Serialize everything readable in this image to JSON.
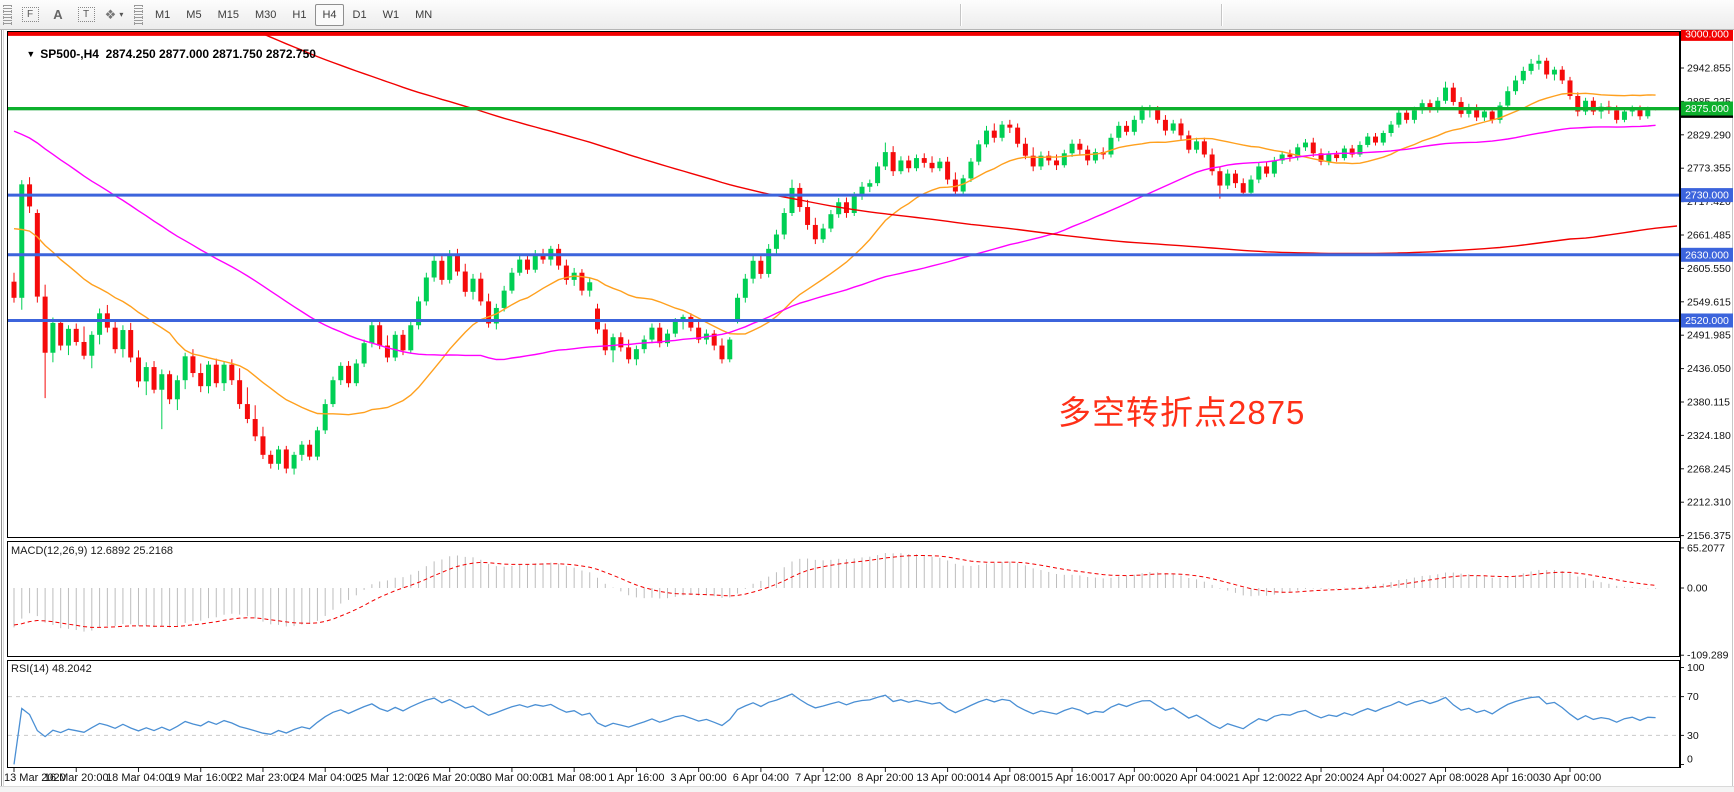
{
  "toolbar": {
    "drawing_tools": [
      {
        "id": "fibo-grid-tool",
        "glyph": "F"
      },
      {
        "id": "label-tool",
        "glyph": "A"
      },
      {
        "id": "text-tool",
        "glyph": "T"
      },
      {
        "id": "shapes-tool",
        "glyph": "❖"
      }
    ],
    "dropdown_caret": "▾",
    "timeframes": [
      "M1",
      "M5",
      "M15",
      "M30",
      "H1",
      "H4",
      "D1",
      "W1",
      "MN"
    ],
    "active_timeframe": "H4"
  },
  "chart": {
    "dropdown_glyph": "▼",
    "symbol": "SP500-,H4",
    "open": "2874.250",
    "high": "2877.000",
    "low": "2871.750",
    "close": "2872.750",
    "macd_label": "MACD(12,26,9) 12.6892 25.2168",
    "rsi_label": "RSI(14) 48.2042",
    "annotation_text": "多空转折点2875"
  },
  "chart_data": {
    "type": "candlestick",
    "symbol": "SP500-",
    "timeframe": "H4",
    "title": "SP500-,H4 2874.250 2877.000 2871.750 2872.750",
    "price_axis_ticks": [
      2942.855,
      2885.225,
      2829.29,
      2773.355,
      2717.42,
      2661.485,
      2605.55,
      2549.615,
      2491.985,
      2436.05,
      2380.115,
      2324.18,
      2268.245,
      2212.31,
      2156.375
    ],
    "visible_price_range": [
      2146,
      3011
    ],
    "horizontal_lines": [
      {
        "price": 3000.0,
        "color": "#f20000",
        "width": 4,
        "badge": "3000.000"
      },
      {
        "price": 2875.0,
        "color": "#0db02d",
        "width": 3,
        "badge": "2875.000"
      },
      {
        "price": 2730.0,
        "color": "#3c64dc",
        "width": 3,
        "badge": "2730.000"
      },
      {
        "price": 2630.0,
        "color": "#3c64dc",
        "width": 3,
        "badge": "2630.000"
      },
      {
        "price": 2520.0,
        "color": "#3c64dc",
        "width": 3,
        "badge": "2520.000"
      }
    ],
    "bid_line": {
      "price": 2872.75,
      "color": "#2fae4e",
      "badge": "2872.750",
      "badge_bg": "#000000"
    },
    "bull_color": "#00cf54",
    "bear_color": "#f50b0b",
    "moving_averages": [
      {
        "name": "sma-20",
        "period": 20,
        "color": "#ffa01e"
      },
      {
        "name": "sma-60",
        "period": 60,
        "color": "#ff00ff"
      },
      {
        "name": "sma-200",
        "period": 200,
        "color": "#f20000"
      }
    ],
    "ma_seed_closes_anchors": [
      [
        -200,
        3300
      ],
      [
        -175,
        3380
      ],
      [
        -150,
        3390
      ],
      [
        -125,
        3320
      ],
      [
        -100,
        3200
      ],
      [
        -85,
        3080
      ],
      [
        -70,
        3130
      ],
      [
        -60,
        3090
      ],
      [
        -50,
        3010
      ],
      [
        -40,
        2920
      ],
      [
        -30,
        2820
      ],
      [
        -22,
        2800
      ],
      [
        -15,
        2740
      ],
      [
        -8,
        2650
      ],
      [
        -1,
        2590
      ]
    ],
    "candles": [
      [
        2585,
        2600,
        2550,
        2558
      ],
      [
        2558,
        2755,
        2538,
        2748
      ],
      [
        2748,
        2760,
        2700,
        2711
      ],
      [
        2700,
        2706,
        2550,
        2560
      ],
      [
        2560,
        2580,
        2390,
        2466
      ],
      [
        2466,
        2525,
        2450,
        2516
      ],
      [
        2516,
        2522,
        2470,
        2478
      ],
      [
        2478,
        2512,
        2462,
        2506
      ],
      [
        2506,
        2515,
        2478,
        2484
      ],
      [
        2484,
        2510,
        2455,
        2461
      ],
      [
        2461,
        2502,
        2440,
        2496
      ],
      [
        2496,
        2540,
        2480,
        2532
      ],
      [
        2532,
        2546,
        2500,
        2508
      ],
      [
        2508,
        2520,
        2465,
        2472
      ],
      [
        2472,
        2512,
        2458,
        2504
      ],
      [
        2504,
        2516,
        2450,
        2458
      ],
      [
        2458,
        2470,
        2408,
        2418
      ],
      [
        2418,
        2450,
        2395,
        2442
      ],
      [
        2442,
        2452,
        2398,
        2404
      ],
      [
        2404,
        2438,
        2338,
        2430
      ],
      [
        2430,
        2436,
        2380,
        2388
      ],
      [
        2388,
        2428,
        2370,
        2420
      ],
      [
        2420,
        2466,
        2405,
        2460
      ],
      [
        2460,
        2472,
        2425,
        2432
      ],
      [
        2432,
        2448,
        2400,
        2410
      ],
      [
        2410,
        2452,
        2398,
        2446
      ],
      [
        2446,
        2456,
        2408,
        2415
      ],
      [
        2415,
        2452,
        2402,
        2446
      ],
      [
        2446,
        2455,
        2412,
        2420
      ],
      [
        2420,
        2440,
        2372,
        2380
      ],
      [
        2380,
        2408,
        2348,
        2355
      ],
      [
        2355,
        2378,
        2318,
        2326
      ],
      [
        2326,
        2342,
        2288,
        2295
      ],
      [
        2295,
        2302,
        2272,
        2280
      ],
      [
        2280,
        2310,
        2270,
        2304
      ],
      [
        2304,
        2310,
        2264,
        2272
      ],
      [
        2272,
        2300,
        2262,
        2295
      ],
      [
        2295,
        2318,
        2285,
        2312
      ],
      [
        2312,
        2320,
        2286,
        2292
      ],
      [
        2292,
        2342,
        2286,
        2336
      ],
      [
        2336,
        2388,
        2330,
        2380
      ],
      [
        2380,
        2426,
        2375,
        2420
      ],
      [
        2420,
        2450,
        2412,
        2444
      ],
      [
        2444,
        2452,
        2408,
        2415
      ],
      [
        2415,
        2455,
        2410,
        2448
      ],
      [
        2448,
        2488,
        2442,
        2482
      ],
      [
        2482,
        2522,
        2475,
        2512
      ],
      [
        2512,
        2520,
        2472,
        2478
      ],
      [
        2478,
        2495,
        2450,
        2458
      ],
      [
        2458,
        2502,
        2452,
        2496
      ],
      [
        2496,
        2504,
        2462,
        2470
      ],
      [
        2470,
        2518,
        2465,
        2512
      ],
      [
        2512,
        2560,
        2505,
        2552
      ],
      [
        2552,
        2600,
        2545,
        2592
      ],
      [
        2592,
        2628,
        2585,
        2620
      ],
      [
        2620,
        2630,
        2580,
        2588
      ],
      [
        2588,
        2638,
        2582,
        2630
      ],
      [
        2630,
        2640,
        2595,
        2602
      ],
      [
        2602,
        2615,
        2560,
        2568
      ],
      [
        2568,
        2598,
        2555,
        2590
      ],
      [
        2590,
        2600,
        2545,
        2552
      ],
      [
        2552,
        2565,
        2508,
        2515
      ],
      [
        2515,
        2548,
        2505,
        2541
      ],
      [
        2541,
        2578,
        2535,
        2570
      ],
      [
        2570,
        2608,
        2565,
        2600
      ],
      [
        2600,
        2628,
        2595,
        2622
      ],
      [
        2622,
        2630,
        2598,
        2605
      ],
      [
        2605,
        2638,
        2600,
        2632
      ],
      [
        2632,
        2640,
        2615,
        2622
      ],
      [
        2622,
        2645,
        2612,
        2640
      ],
      [
        2640,
        2648,
        2605,
        2612
      ],
      [
        2612,
        2622,
        2580,
        2588
      ],
      [
        2588,
        2608,
        2578,
        2600
      ],
      [
        2600,
        2606,
        2562,
        2570
      ],
      [
        2570,
        2592,
        2560,
        2584
      ],
      [
        2540,
        2548,
        2498,
        2505
      ],
      [
        2505,
        2515,
        2462,
        2470
      ],
      [
        2470,
        2498,
        2450,
        2492
      ],
      [
        2492,
        2500,
        2468,
        2475
      ],
      [
        2475,
        2488,
        2448,
        2455
      ],
      [
        2455,
        2478,
        2445,
        2472
      ],
      [
        2472,
        2495,
        2465,
        2488
      ],
      [
        2488,
        2515,
        2482,
        2508
      ],
      [
        2508,
        2516,
        2475,
        2482
      ],
      [
        2482,
        2505,
        2476,
        2498
      ],
      [
        2498,
        2524,
        2492,
        2518
      ],
      [
        2518,
        2530,
        2505,
        2526
      ],
      [
        2526,
        2532,
        2502,
        2508
      ],
      [
        2508,
        2518,
        2482,
        2488
      ],
      [
        2488,
        2505,
        2480,
        2498
      ],
      [
        2498,
        2504,
        2470,
        2478
      ],
      [
        2478,
        2490,
        2448,
        2455
      ],
      [
        2455,
        2492,
        2450,
        2488
      ],
      [
        2522,
        2565,
        2515,
        2558
      ],
      [
        2558,
        2598,
        2550,
        2590
      ],
      [
        2590,
        2628,
        2582,
        2620
      ],
      [
        2620,
        2630,
        2590,
        2598
      ],
      [
        2598,
        2648,
        2592,
        2640
      ],
      [
        2640,
        2672,
        2632,
        2664
      ],
      [
        2664,
        2708,
        2656,
        2700
      ],
      [
        2700,
        2756,
        2695,
        2742
      ],
      [
        2742,
        2750,
        2702,
        2710
      ],
      [
        2710,
        2722,
        2672,
        2680
      ],
      [
        2680,
        2692,
        2648,
        2656
      ],
      [
        2656,
        2682,
        2650,
        2674
      ],
      [
        2674,
        2705,
        2668,
        2698
      ],
      [
        2698,
        2725,
        2692,
        2718
      ],
      [
        2718,
        2726,
        2692,
        2700
      ],
      [
        2700,
        2735,
        2695,
        2728
      ],
      [
        2728,
        2752,
        2722,
        2744
      ],
      [
        2744,
        2756,
        2735,
        2750
      ],
      [
        2750,
        2785,
        2745,
        2778
      ],
      [
        2778,
        2818,
        2772,
        2802
      ],
      [
        2802,
        2812,
        2762,
        2770
      ],
      [
        2770,
        2795,
        2765,
        2788
      ],
      [
        2788,
        2796,
        2768,
        2775
      ],
      [
        2775,
        2798,
        2770,
        2792
      ],
      [
        2792,
        2800,
        2776,
        2784
      ],
      [
        2784,
        2795,
        2768,
        2775
      ],
      [
        2775,
        2792,
        2770,
        2786
      ],
      [
        2786,
        2794,
        2748,
        2756
      ],
      [
        2756,
        2768,
        2728,
        2736
      ],
      [
        2736,
        2764,
        2730,
        2758
      ],
      [
        2758,
        2792,
        2752,
        2786
      ],
      [
        2786,
        2822,
        2780,
        2815
      ],
      [
        2815,
        2846,
        2810,
        2838
      ],
      [
        2838,
        2850,
        2818,
        2826
      ],
      [
        2826,
        2854,
        2820,
        2848
      ],
      [
        2848,
        2856,
        2834,
        2843
      ],
      [
        2843,
        2850,
        2810,
        2816
      ],
      [
        2816,
        2826,
        2790,
        2796
      ],
      [
        2796,
        2810,
        2770,
        2778
      ],
      [
        2778,
        2803,
        2772,
        2796
      ],
      [
        2796,
        2804,
        2780,
        2788
      ],
      [
        2788,
        2798,
        2772,
        2780
      ],
      [
        2780,
        2806,
        2776,
        2800
      ],
      [
        2800,
        2823,
        2794,
        2816
      ],
      [
        2816,
        2824,
        2798,
        2806
      ],
      [
        2806,
        2813,
        2780,
        2788
      ],
      [
        2788,
        2808,
        2783,
        2802
      ],
      [
        2802,
        2810,
        2790,
        2798
      ],
      [
        2798,
        2833,
        2793,
        2826
      ],
      [
        2826,
        2853,
        2820,
        2846
      ],
      [
        2846,
        2854,
        2830,
        2836
      ],
      [
        2836,
        2863,
        2830,
        2856
      ],
      [
        2856,
        2880,
        2850,
        2872
      ],
      [
        2872,
        2881,
        2860,
        2874
      ],
      [
        2874,
        2879,
        2850,
        2856
      ],
      [
        2856,
        2864,
        2830,
        2838
      ],
      [
        2838,
        2856,
        2833,
        2850
      ],
      [
        2850,
        2858,
        2823,
        2830
      ],
      [
        2830,
        2838,
        2800,
        2806
      ],
      [
        2806,
        2826,
        2800,
        2820
      ],
      [
        2820,
        2826,
        2793,
        2798
      ],
      [
        2798,
        2808,
        2763,
        2770
      ],
      [
        2770,
        2778,
        2724,
        2746
      ],
      [
        2746,
        2773,
        2740,
        2766
      ],
      [
        2766,
        2772,
        2742,
        2750
      ],
      [
        2750,
        2758,
        2728,
        2734
      ],
      [
        2734,
        2763,
        2728,
        2756
      ],
      [
        2756,
        2784,
        2750,
        2778
      ],
      [
        2778,
        2786,
        2760,
        2766
      ],
      [
        2766,
        2794,
        2760,
        2788
      ],
      [
        2788,
        2804,
        2782,
        2798
      ],
      [
        2798,
        2806,
        2786,
        2794
      ],
      [
        2794,
        2816,
        2788,
        2810
      ],
      [
        2810,
        2824,
        2804,
        2818
      ],
      [
        2818,
        2826,
        2794,
        2800
      ],
      [
        2800,
        2808,
        2780,
        2786
      ],
      [
        2786,
        2804,
        2780,
        2798
      ],
      [
        2798,
        2804,
        2786,
        2792
      ],
      [
        2792,
        2813,
        2788,
        2808
      ],
      [
        2808,
        2814,
        2793,
        2798
      ],
      [
        2798,
        2820,
        2794,
        2814
      ],
      [
        2814,
        2834,
        2810,
        2828
      ],
      [
        2828,
        2834,
        2813,
        2818
      ],
      [
        2818,
        2838,
        2813,
        2834
      ],
      [
        2834,
        2854,
        2828,
        2848
      ],
      [
        2848,
        2874,
        2843,
        2868
      ],
      [
        2868,
        2876,
        2850,
        2856
      ],
      [
        2856,
        2878,
        2850,
        2872
      ],
      [
        2872,
        2890,
        2866,
        2884
      ],
      [
        2884,
        2890,
        2868,
        2874
      ],
      [
        2874,
        2894,
        2868,
        2888
      ],
      [
        2888,
        2920,
        2883,
        2910
      ],
      [
        2910,
        2918,
        2880,
        2886
      ],
      [
        2886,
        2894,
        2860,
        2866
      ],
      [
        2866,
        2883,
        2860,
        2876
      ],
      [
        2876,
        2882,
        2854,
        2860
      ],
      [
        2860,
        2876,
        2854,
        2870
      ],
      [
        2870,
        2876,
        2850,
        2856
      ],
      [
        2856,
        2886,
        2850,
        2880
      ],
      [
        2880,
        2912,
        2874,
        2904
      ],
      [
        2904,
        2930,
        2898,
        2922
      ],
      [
        2922,
        2945,
        2916,
        2938
      ],
      [
        2938,
        2958,
        2932,
        2950
      ],
      [
        2950,
        2965,
        2940,
        2955
      ],
      [
        2955,
        2960,
        2925,
        2932
      ],
      [
        2932,
        2945,
        2922,
        2940
      ],
      [
        2940,
        2946,
        2916,
        2922
      ],
      [
        2922,
        2928,
        2890,
        2896
      ],
      [
        2896,
        2902,
        2862,
        2870
      ],
      [
        2870,
        2893,
        2864,
        2888
      ],
      [
        2888,
        2894,
        2864,
        2870
      ],
      [
        2870,
        2884,
        2858,
        2878
      ],
      [
        2878,
        2888,
        2866,
        2872
      ],
      [
        2872,
        2880,
        2850,
        2856
      ],
      [
        2856,
        2876,
        2852,
        2870
      ],
      [
        2870,
        2880,
        2862,
        2876
      ],
      [
        2876,
        2880,
        2856,
        2862
      ],
      [
        2862,
        2878,
        2858,
        2874
      ],
      [
        2874.25,
        2877,
        2871.75,
        2872.75
      ]
    ],
    "macd": {
      "fast": 12,
      "slow": 26,
      "signal_period": 9,
      "value": 12.6892,
      "signal_value": 25.2168,
      "axis_tick_labels": [
        "65.2077",
        "0.00",
        "-109.289"
      ],
      "axis_tick_values": [
        65.2077,
        0,
        -109.289
      ],
      "hist_color": "#bdbdbd",
      "signal_color": "#f20000"
    },
    "rsi": {
      "period": 14,
      "value": 48.2042,
      "axis_tick_labels": [
        "100",
        "70",
        "30",
        "0"
      ],
      "axis_tick_values": [
        100,
        70,
        30,
        0
      ],
      "levels": [
        70,
        30
      ],
      "color": "#4a8fd4",
      "level_color": "#c9c9c9"
    },
    "time_axis_ticks": [
      "13 Mar 2020",
      "16 Mar 20:00",
      "18 Mar 04:00",
      "19 Mar 16:00",
      "22 Mar 23:00",
      "24 Mar 04:00",
      "25 Mar 12:00",
      "26 Mar 20:00",
      "30 Mar 00:00",
      "31 Mar 08:00",
      "1 Apr 16:00",
      "3 Apr 00:00",
      "6 Apr 04:00",
      "7 Apr 12:00",
      "8 Apr 20:00",
      "13 Apr 00:00",
      "14 Apr 08:00",
      "15 Apr 16:00",
      "17 Apr 00:00",
      "20 Apr 04:00",
      "21 Apr 12:00",
      "22 Apr 20:00",
      "24 Apr 04:00",
      "27 Apr 08:00",
      "28 Apr 16:00",
      "30 Apr 00:00"
    ],
    "bars_per_time_tick": 8,
    "grid": "off",
    "annotation": {
      "text": "多空转折点2875",
      "color": "#ff3018"
    }
  }
}
